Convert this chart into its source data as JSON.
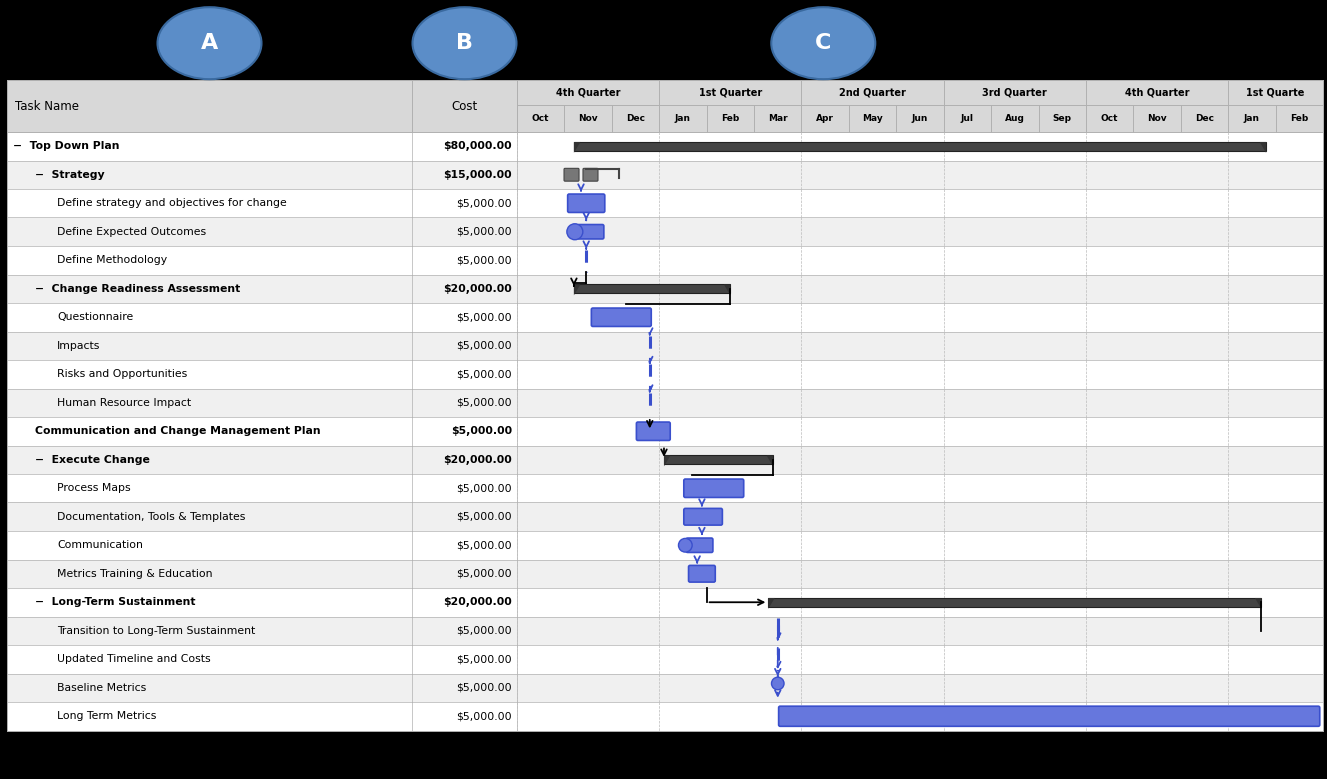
{
  "col_a_label": "A",
  "col_b_label": "B",
  "col_c_label": "C",
  "circle_color": "#5b8dc8",
  "tasks": [
    {
      "name": "Top Down Plan",
      "cost": "$80,000.00",
      "level": 1,
      "bold": true,
      "prefix": true
    },
    {
      "name": "Strategy",
      "cost": "$15,000.00",
      "level": 2,
      "bold": true,
      "prefix": true
    },
    {
      "name": "Define strategy and objectives for change",
      "cost": "$5,000.00",
      "level": 3,
      "bold": false,
      "prefix": false
    },
    {
      "name": "Define Expected Outcomes",
      "cost": "$5,000.00",
      "level": 3,
      "bold": false,
      "prefix": false
    },
    {
      "name": "Define Methodology",
      "cost": "$5,000.00",
      "level": 3,
      "bold": false,
      "prefix": false
    },
    {
      "name": "Change Readiness Assessment",
      "cost": "$20,000.00",
      "level": 2,
      "bold": true,
      "prefix": true
    },
    {
      "name": "Questionnaire",
      "cost": "$5,000.00",
      "level": 3,
      "bold": false,
      "prefix": false
    },
    {
      "name": "Impacts",
      "cost": "$5,000.00",
      "level": 3,
      "bold": false,
      "prefix": false
    },
    {
      "name": "Risks and Opportunities",
      "cost": "$5,000.00",
      "level": 3,
      "bold": false,
      "prefix": false
    },
    {
      "name": "Human Resource Impact",
      "cost": "$5,000.00",
      "level": 3,
      "bold": false,
      "prefix": false
    },
    {
      "name": "Communication and Change Management Plan",
      "cost": "$5,000.00",
      "level": 2,
      "bold": true,
      "prefix": false
    },
    {
      "name": "Execute Change",
      "cost": "$20,000.00",
      "level": 2,
      "bold": true,
      "prefix": true
    },
    {
      "name": "Process Maps",
      "cost": "$5,000.00",
      "level": 3,
      "bold": false,
      "prefix": false
    },
    {
      "name": "Documentation, Tools & Templates",
      "cost": "$5,000.00",
      "level": 3,
      "bold": false,
      "prefix": false
    },
    {
      "name": "Communication",
      "cost": "$5,000.00",
      "level": 3,
      "bold": false,
      "prefix": false
    },
    {
      "name": "Metrics Training & Education",
      "cost": "$5,000.00",
      "level": 3,
      "bold": false,
      "prefix": false
    },
    {
      "name": "Long-Term Sustainment",
      "cost": "$20,000.00",
      "level": 2,
      "bold": true,
      "prefix": true
    },
    {
      "name": "Transition to Long-Term Sustainment",
      "cost": "$5,000.00",
      "level": 3,
      "bold": false,
      "prefix": false
    },
    {
      "name": "Updated Timeline and Costs",
      "cost": "$5,000.00",
      "level": 3,
      "bold": false,
      "prefix": false
    },
    {
      "name": "Baseline Metrics",
      "cost": "$5,000.00",
      "level": 3,
      "bold": false,
      "prefix": false
    },
    {
      "name": "Long Term Metrics",
      "cost": "$5,000.00",
      "level": 3,
      "bold": false,
      "prefix": false
    }
  ],
  "quarters": [
    {
      "name": "4th Quarter",
      "start": 0,
      "end": 3
    },
    {
      "name": "1st Quarter",
      "start": 3,
      "end": 6
    },
    {
      "name": "2nd Quarter",
      "start": 6,
      "end": 9
    },
    {
      "name": "3rd Quarter",
      "start": 9,
      "end": 12
    },
    {
      "name": "4th Quarter",
      "start": 12,
      "end": 15
    },
    {
      "name": "1st Quarte",
      "start": 15,
      "end": 17
    }
  ],
  "months": [
    "Oct",
    "Nov",
    "Dec",
    "Jan",
    "Feb",
    "Mar",
    "Apr",
    "May",
    "Jun",
    "Jul",
    "Aug",
    "Sep",
    "Oct",
    "Nov",
    "Dec",
    "Jan",
    "Feb"
  ],
  "blue": "#3a4fcc",
  "dark_gray": "#555555",
  "light_gray": "#888888",
  "row_colors": [
    "#ffffff",
    "#f0f0f0"
  ],
  "header_gray": "#d8d8d8",
  "border_color": "#b0b0b0"
}
